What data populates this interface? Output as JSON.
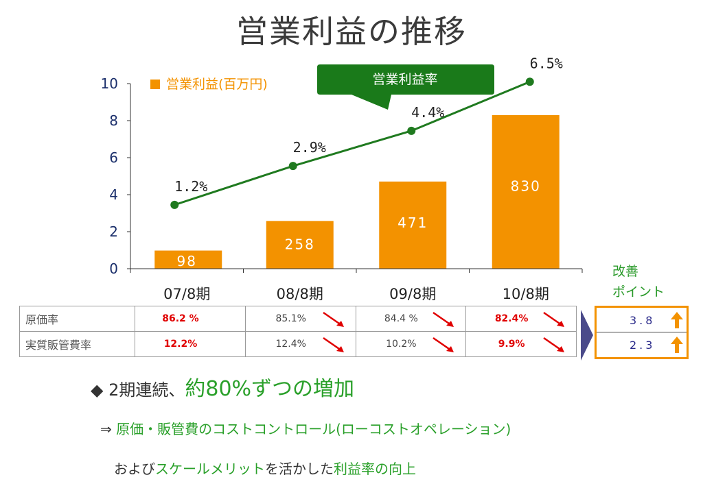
{
  "title": "営業利益の推移",
  "chart_data": {
    "type": "bar",
    "categories": [
      "07/8期",
      "08/8期",
      "09/8期",
      "10/8期"
    ],
    "y_ticks": [
      "0",
      "2",
      "4",
      "6",
      "8",
      "10"
    ],
    "ylim": [
      0,
      10
    ],
    "series": [
      {
        "name": "営業利益(百万円)",
        "type": "bar",
        "values": [
          0.98,
          2.58,
          4.71,
          8.3
        ],
        "labels": [
          "98",
          "258",
          "471",
          "830"
        ],
        "color": "#f39200"
      },
      {
        "name": "営業利益率",
        "type": "line",
        "values": [
          1.2,
          2.9,
          4.4,
          6.5
        ],
        "labels": [
          "1.2%",
          "2.9%",
          "4.4%",
          "6.5%"
        ],
        "color": "#1f7a1f"
      }
    ],
    "legend": "営業利益(百万円)",
    "callout": "営業利益率",
    "line_value_positions_on_axis": [
      3.45,
      5.55,
      7.45,
      10.1
    ]
  },
  "table": {
    "rows": [
      {
        "label": "原価率",
        "values": [
          "86.2 %",
          "85.1%",
          "84.4 %",
          "82.4%"
        ],
        "red": [
          true,
          false,
          false,
          true
        ],
        "arrow": [
          false,
          true,
          true,
          true
        ]
      },
      {
        "label": "実質販管費率",
        "values": [
          "12.2%",
          "12.4%",
          "10.2%",
          "9.9%"
        ],
        "red": [
          true,
          false,
          false,
          true
        ],
        "arrow": [
          false,
          true,
          true,
          true
        ]
      }
    ]
  },
  "improve": {
    "label_line1": "改善",
    "label_line2": "ポイント",
    "values": [
      "3.8",
      "2.3"
    ]
  },
  "text": {
    "line1_prefix": "◆ 2期連続、",
    "line1_emph": "約80%ずつの増加",
    "line2_arrow": "⇒ ",
    "line2_green": "原価・販管費のコストコントロール(ローコストオペレーション)",
    "line3_a": "および",
    "line3_b": "スケールメリット",
    "line3_c": "を活かした",
    "line3_d": "利益率の向上"
  },
  "colors": {
    "bar": "#f39200",
    "line": "#1f7a1f",
    "axis_text": "#1b2f6b",
    "red": "#e00000",
    "green_text": "#2aa02a"
  }
}
